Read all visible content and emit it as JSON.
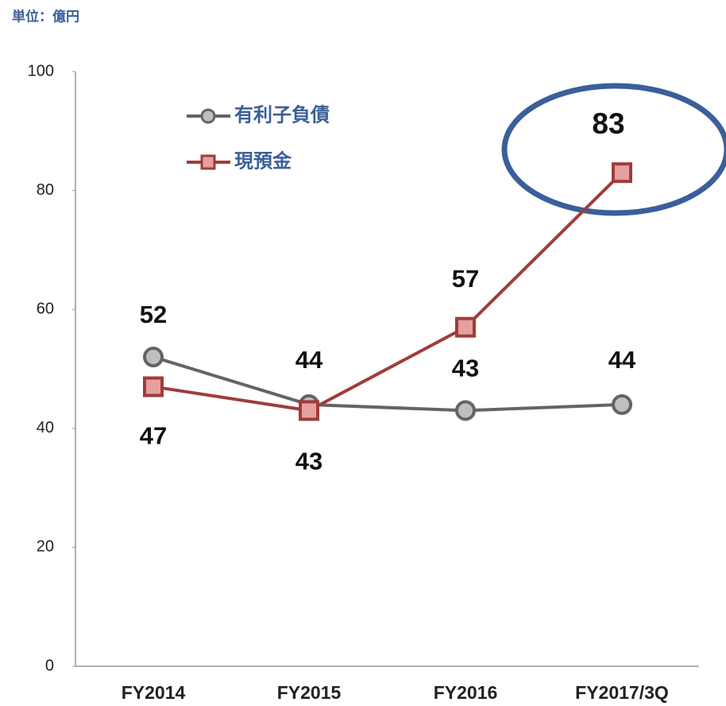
{
  "chart_data": {
    "type": "line",
    "subtitle": "単位：億円",
    "categories": [
      "FY2014",
      "FY2015",
      "FY2016",
      "FY2017/3Q"
    ],
    "series": [
      {
        "name": "有利子負債",
        "color": "#646464",
        "values": [
          52,
          44,
          43,
          44
        ]
      },
      {
        "name": "現預金",
        "color": "#a03c3c",
        "values": [
          47,
          43,
          57,
          83
        ]
      }
    ],
    "ylim": [
      0,
      100
    ],
    "yticks": [
      0,
      20,
      40,
      60,
      80,
      100
    ],
    "grid": false
  }
}
